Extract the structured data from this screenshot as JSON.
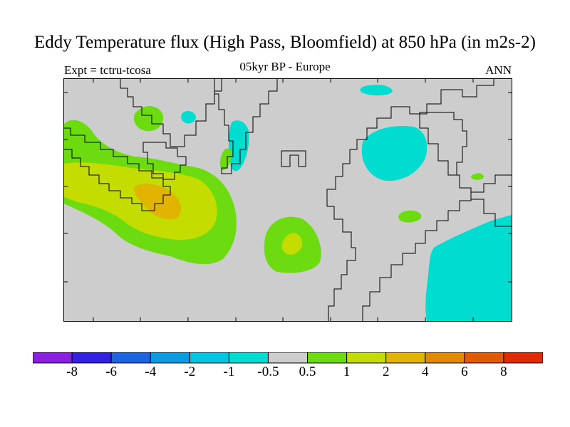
{
  "title": "Eddy Temperature flux (High Pass, Bloomfield) at 850 hPa (in m2s-2)",
  "expt_label": "Expt = tctru-tcosa",
  "period_label": "05kyr BP - Europe",
  "season_label": "ANN",
  "map": {
    "background_color": "#cdcdcd",
    "coastline_color": "#000000"
  },
  "colorbar": {
    "colors": [
      "#8c20e0",
      "#3320e0",
      "#1e64e0",
      "#0c9ae0",
      "#00c4e0",
      "#00dcd0",
      "#cdcdcd",
      "#6cdc10",
      "#c4dc00",
      "#e0b400",
      "#e08a00",
      "#e05a00",
      "#e02a00"
    ],
    "labels": [
      "-8",
      "-6",
      "-4",
      "-2",
      "-1",
      "-0.5",
      "0.5",
      "1",
      "2",
      "4",
      "6",
      "8"
    ]
  }
}
